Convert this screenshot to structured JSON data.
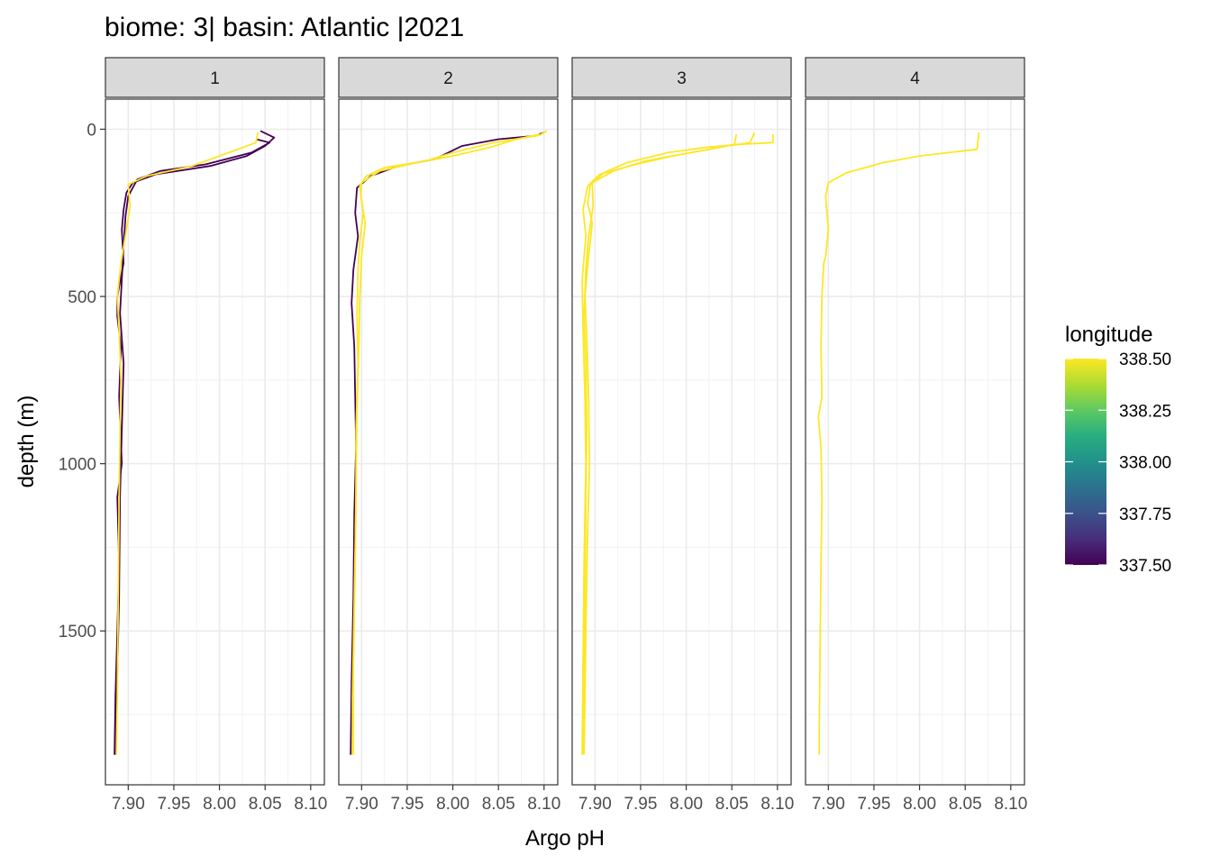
{
  "chart_data": {
    "type": "line",
    "title": "biome: 3| basin: Atlantic |2021",
    "xlabel": "Argo pH",
    "ylabel": "depth (m)",
    "xlim": [
      7.875,
      8.115
    ],
    "ylim": [
      1960,
      -90
    ],
    "x_ticks": [
      7.9,
      7.95,
      8.0,
      8.05,
      8.1
    ],
    "x_tick_labels": [
      "7.90",
      "7.95",
      "8.00",
      "8.05",
      "8.10"
    ],
    "y_ticks": [
      0,
      500,
      1000,
      1500
    ],
    "y_tick_labels": [
      "0",
      "500",
      "1000",
      "1500"
    ],
    "grid": true,
    "legend": {
      "title": "longitude",
      "position": "right",
      "type": "colorbar",
      "min": 337.5,
      "max": 338.5,
      "breaks": [
        338.5,
        338.25,
        338.0,
        337.75,
        337.5
      ],
      "break_labels": [
        "338.50",
        "338.25",
        "338.00",
        "337.75",
        "337.50"
      ],
      "colormap": [
        "#440154",
        "#472d7b",
        "#3b528b",
        "#2c728e",
        "#21918c",
        "#28ae80",
        "#5ec962",
        "#addc30",
        "#fde725"
      ]
    },
    "panels": [
      {
        "label": "1",
        "series": [
          {
            "longitude": 337.5,
            "points": [
              [
                8.045,
                5
              ],
              [
                8.06,
                25
              ],
              [
                8.05,
                50
              ],
              [
                8.03,
                80
              ],
              [
                7.99,
                110
              ],
              [
                7.93,
                135
              ],
              [
                7.905,
                160
              ],
              [
                7.898,
                190
              ],
              [
                7.895,
                240
              ],
              [
                7.893,
                300
              ],
              [
                7.895,
                400
              ],
              [
                7.888,
                500
              ],
              [
                7.888,
                560
              ],
              [
                7.892,
                650
              ],
              [
                7.89,
                800
              ],
              [
                7.893,
                1000
              ],
              [
                7.888,
                1100
              ],
              [
                7.89,
                1300
              ],
              [
                7.888,
                1500
              ],
              [
                7.886,
                1700
              ],
              [
                7.885,
                1870
              ]
            ]
          },
          {
            "longitude": 337.5,
            "points": [
              [
                8.04,
                30
              ],
              [
                8.055,
                40
              ],
              [
                8.035,
                70
              ],
              [
                7.985,
                105
              ],
              [
                7.935,
                125
              ],
              [
                7.91,
                150
              ],
              [
                7.9,
                200
              ],
              [
                7.897,
                260
              ],
              [
                7.895,
                350
              ],
              [
                7.893,
                450
              ],
              [
                7.891,
                550
              ],
              [
                7.895,
                700
              ],
              [
                7.893,
                900
              ],
              [
                7.891,
                1100
              ],
              [
                7.89,
                1400
              ],
              [
                7.886,
                1870
              ]
            ]
          },
          {
            "longitude": 338.5,
            "points": [
              [
                8.042,
                10
              ],
              [
                8.04,
                40
              ],
              [
                8.01,
                70
              ],
              [
                7.97,
                110
              ],
              [
                7.92,
                140
              ],
              [
                7.9,
                165
              ],
              [
                7.902,
                230
              ],
              [
                7.898,
                300
              ],
              [
                7.892,
                400
              ],
              [
                7.888,
                500
              ],
              [
                7.89,
                600
              ],
              [
                7.892,
                750
              ],
              [
                7.891,
                900
              ],
              [
                7.89,
                1100
              ],
              [
                7.889,
                1400
              ],
              [
                7.888,
                1700
              ],
              [
                7.887,
                1870
              ]
            ]
          }
        ]
      },
      {
        "label": "2",
        "series": [
          {
            "longitude": 337.5,
            "points": [
              [
                8.1,
                10
              ],
              [
                8.09,
                20
              ],
              [
                8.05,
                30
              ],
              [
                8.01,
                50
              ],
              [
                7.98,
                90
              ],
              [
                7.94,
                110
              ],
              [
                7.91,
                140
              ],
              [
                7.895,
                175
              ],
              [
                7.893,
                250
              ],
              [
                7.896,
                320
              ],
              [
                7.891,
                420
              ],
              [
                7.889,
                520
              ],
              [
                7.892,
                650
              ],
              [
                7.893,
                800
              ],
              [
                7.894,
                950
              ],
              [
                7.892,
                1150
              ],
              [
                7.891,
                1400
              ],
              [
                7.889,
                1650
              ],
              [
                7.888,
                1870
              ]
            ]
          },
          {
            "longitude": 338.5,
            "points": [
              [
                8.103,
                5
              ],
              [
                8.095,
                18
              ],
              [
                8.045,
                40
              ],
              [
                8.0,
                70
              ],
              [
                7.97,
                95
              ],
              [
                7.925,
                115
              ],
              [
                7.905,
                140
              ],
              [
                7.898,
                170
              ],
              [
                7.902,
                250
              ],
              [
                7.898,
                330
              ],
              [
                7.896,
                420
              ],
              [
                7.895,
                550
              ],
              [
                7.896,
                700
              ],
              [
                7.894,
                900
              ],
              [
                7.894,
                1100
              ],
              [
                7.892,
                1400
              ],
              [
                7.89,
                1700
              ],
              [
                7.89,
                1870
              ]
            ]
          },
          {
            "longitude": 338.5,
            "points": [
              [
                8.095,
                15
              ],
              [
                8.07,
                30
              ],
              [
                8.04,
                55
              ],
              [
                8.0,
                80
              ],
              [
                7.96,
                100
              ],
              [
                7.92,
                125
              ],
              [
                7.9,
                160
              ],
              [
                7.899,
                200
              ],
              [
                7.904,
                280
              ],
              [
                7.9,
                380
              ],
              [
                7.898,
                500
              ],
              [
                7.897,
                650
              ],
              [
                7.895,
                850
              ],
              [
                7.894,
                1050
              ],
              [
                7.893,
                1300
              ],
              [
                7.891,
                1600
              ],
              [
                7.891,
                1870
              ]
            ]
          }
        ]
      },
      {
        "label": "3",
        "series": [
          {
            "longitude": 338.5,
            "points": [
              [
                8.095,
                15
              ],
              [
                8.095,
                40
              ],
              [
                8.06,
                45
              ],
              [
                8.02,
                55
              ],
              [
                7.98,
                70
              ],
              [
                7.935,
                100
              ],
              [
                7.91,
                130
              ],
              [
                7.895,
                165
              ],
              [
                7.892,
                220
              ],
              [
                7.897,
                280
              ],
              [
                7.893,
                380
              ],
              [
                7.889,
                500
              ],
              [
                7.891,
                620
              ],
              [
                7.893,
                800
              ],
              [
                7.894,
                1000
              ],
              [
                7.892,
                1200
              ],
              [
                7.89,
                1500
              ],
              [
                7.888,
                1870
              ]
            ]
          },
          {
            "longitude": 338.5,
            "points": [
              [
                8.075,
                10
              ],
              [
                8.07,
                40
              ],
              [
                8.045,
                50
              ],
              [
                8.005,
                70
              ],
              [
                7.955,
                95
              ],
              [
                7.92,
                125
              ],
              [
                7.897,
                160
              ],
              [
                7.898,
                230
              ],
              [
                7.893,
                320
              ],
              [
                7.89,
                420
              ],
              [
                7.888,
                560
              ],
              [
                7.89,
                700
              ],
              [
                7.891,
                900
              ],
              [
                7.89,
                1100
              ],
              [
                7.889,
                1400
              ],
              [
                7.887,
                1870
              ]
            ]
          },
          {
            "longitude": 338.5,
            "points": [
              [
                8.055,
                15
              ],
              [
                8.053,
                45
              ],
              [
                8.025,
                60
              ],
              [
                7.985,
                80
              ],
              [
                7.945,
                105
              ],
              [
                7.905,
                135
              ],
              [
                7.892,
                170
              ],
              [
                7.887,
                240
              ],
              [
                7.89,
                320
              ],
              [
                7.886,
                450
              ],
              [
                7.887,
                600
              ],
              [
                7.889,
                800
              ],
              [
                7.89,
                1000
              ],
              [
                7.888,
                1300
              ],
              [
                7.887,
                1600
              ],
              [
                7.886,
                1870
              ]
            ]
          }
        ]
      },
      {
        "label": "4",
        "series": [
          {
            "longitude": 338.5,
            "points": [
              [
                8.065,
                10
              ],
              [
                8.063,
                60
              ],
              [
                8.0,
                80
              ],
              [
                7.96,
                100
              ],
              [
                7.92,
                130
              ],
              [
                7.9,
                160
              ],
              [
                7.897,
                200
              ],
              [
                7.9,
                300
              ],
              [
                7.897,
                380
              ],
              [
                7.895,
                400
              ],
              [
                7.893,
                500
              ],
              [
                7.892,
                650
              ],
              [
                7.893,
                800
              ],
              [
                7.889,
                860
              ],
              [
                7.892,
                950
              ],
              [
                7.893,
                1100
              ],
              [
                7.892,
                1300
              ],
              [
                7.891,
                1550
              ],
              [
                7.89,
                1800
              ],
              [
                7.89,
                1870
              ]
            ]
          }
        ]
      }
    ]
  }
}
